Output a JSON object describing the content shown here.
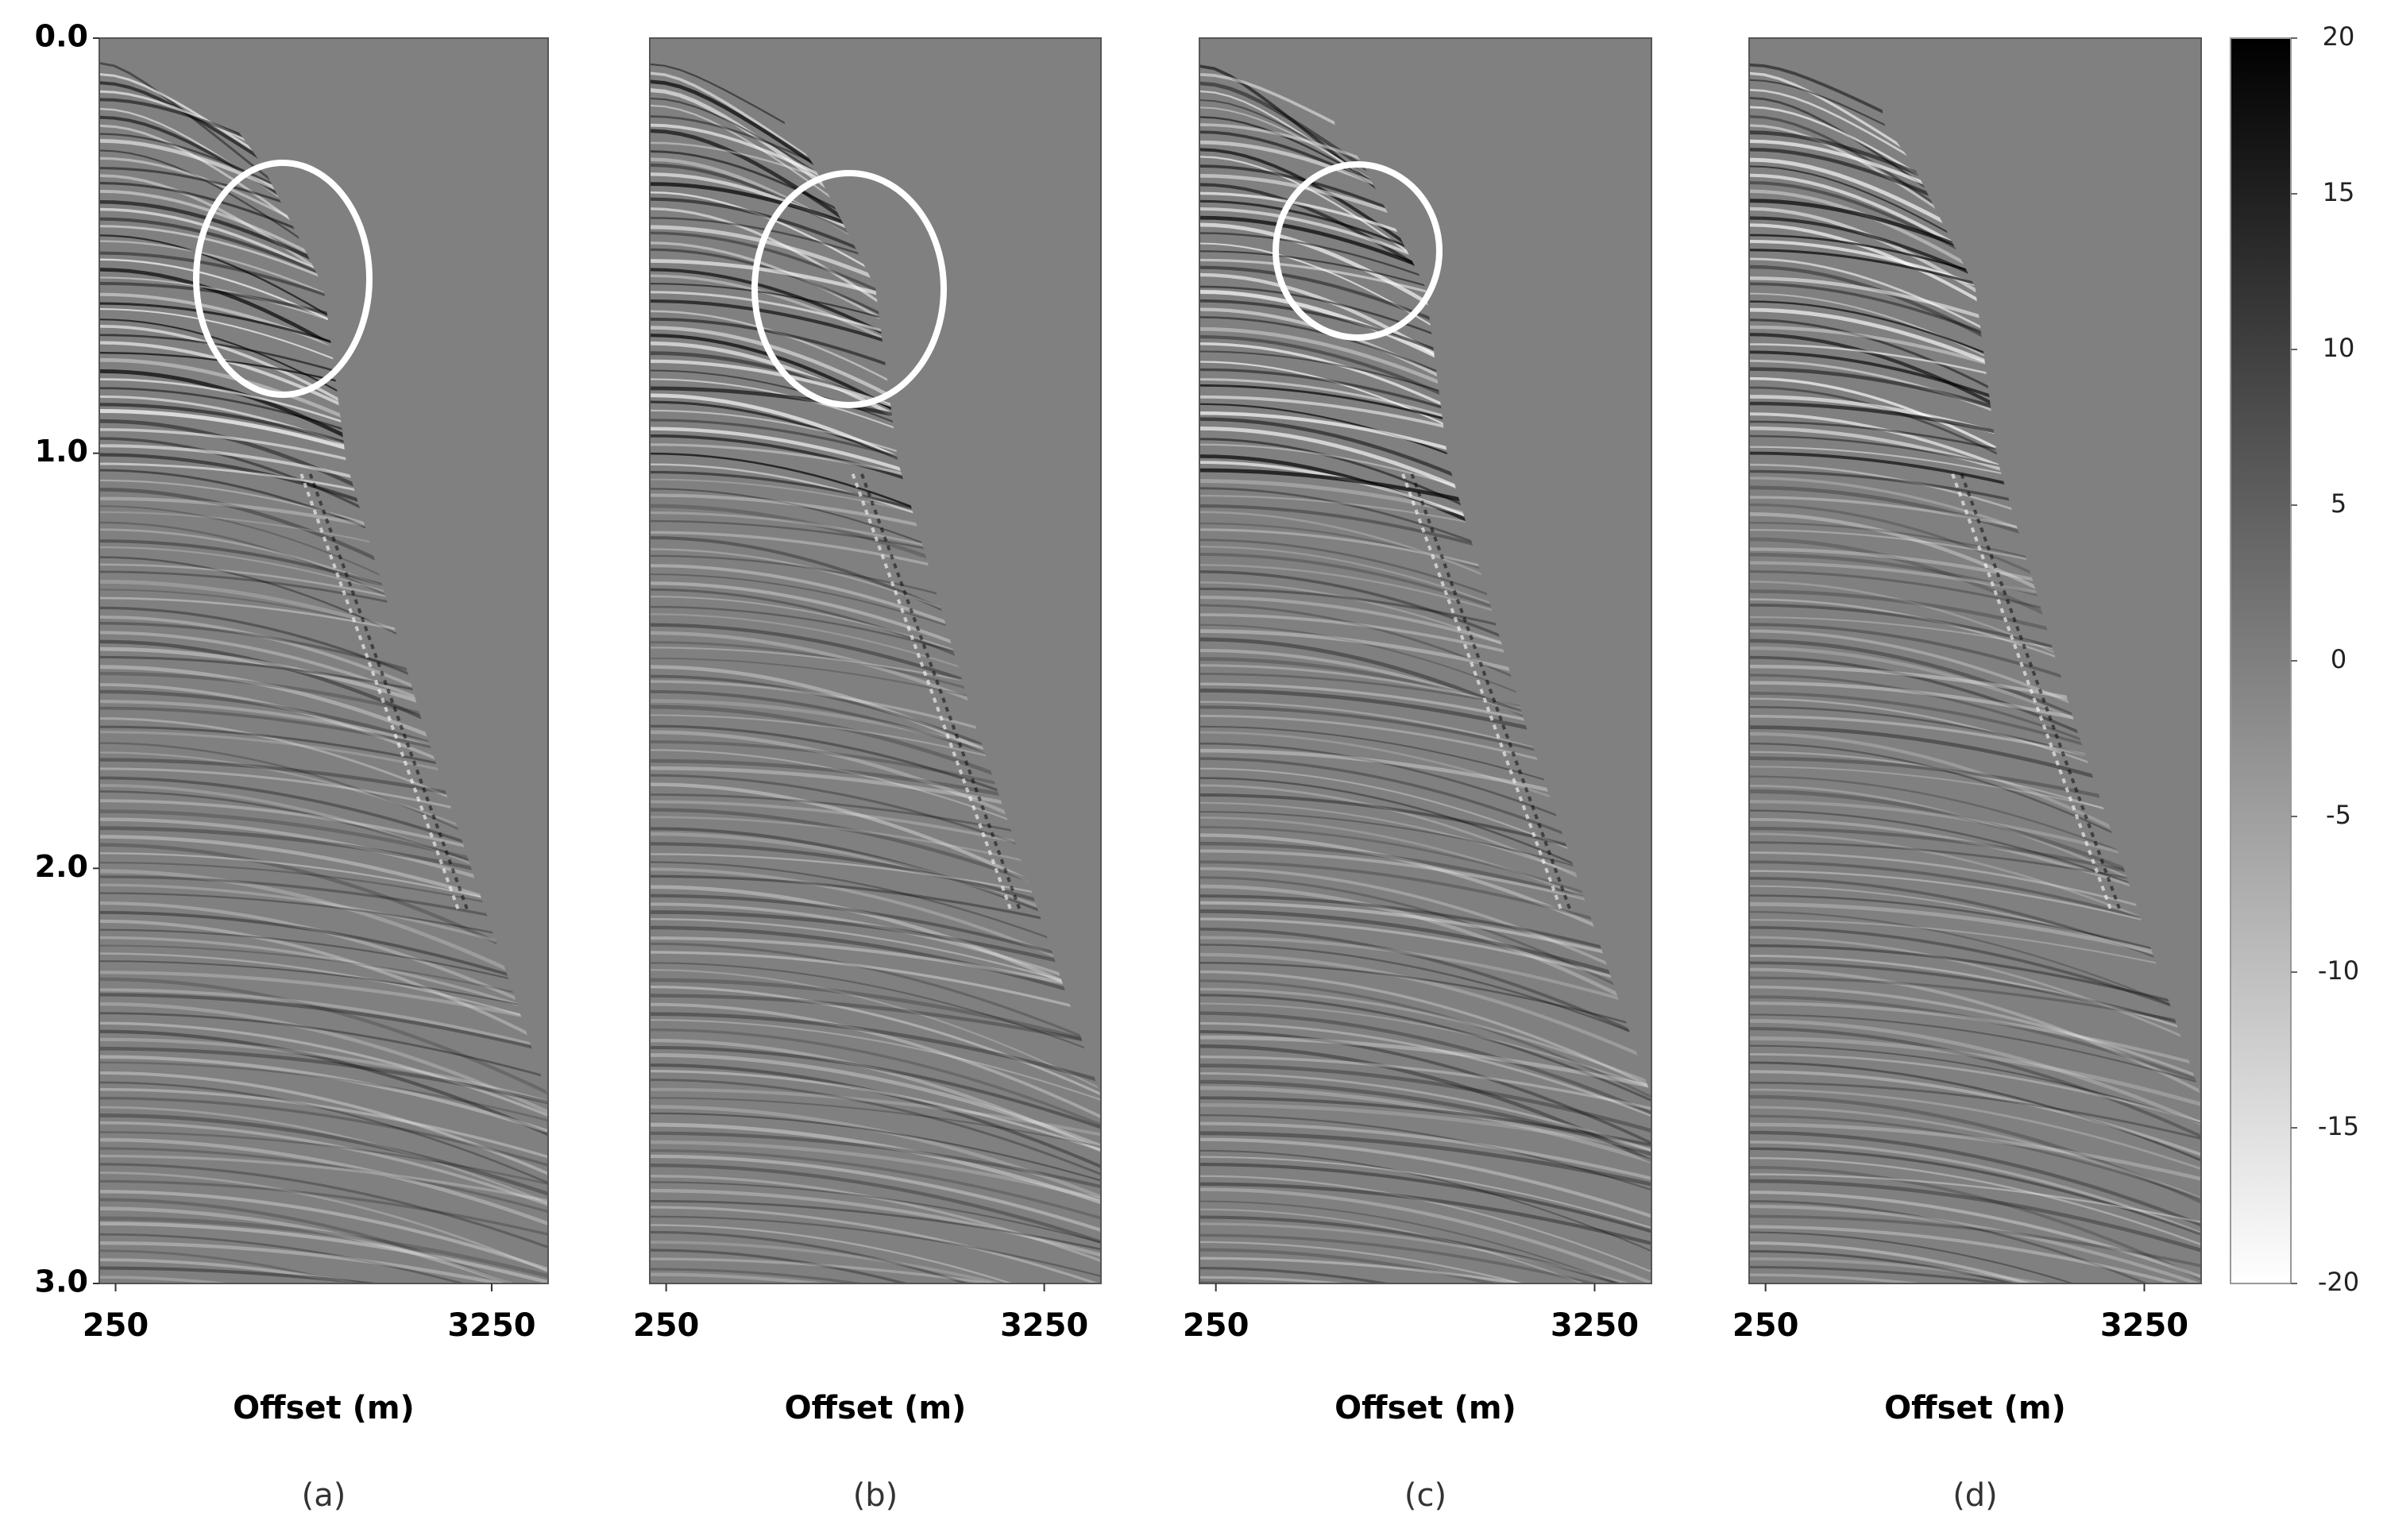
{
  "chart_data": [
    {
      "type": "seismic",
      "xlabel": "Offset (m)",
      "caption": "(a)",
      "xlim": [
        120,
        3700
      ],
      "xticks": [
        250,
        3250
      ],
      "ylim": [
        0,
        3
      ],
      "yticks": [
        {
          "value": 0,
          "label": "0.0"
        },
        {
          "value": 1,
          "label": "1.0"
        },
        {
          "value": 2,
          "label": "2.0"
        },
        {
          "value": 3,
          "label": "3.0"
        }
      ]
    },
    {
      "type": "seismic",
      "xlabel": "Offset (m)",
      "caption": "(b)",
      "xlim": [
        120,
        3700
      ],
      "xticks": [
        250,
        3250
      ],
      "ylim": [
        0,
        3
      ]
    },
    {
      "type": "seismic",
      "xlabel": "Offset (m)",
      "caption": "(c)",
      "xlim": [
        120,
        3700
      ],
      "xticks": [
        250,
        3250
      ],
      "ylim": [
        0,
        3
      ]
    },
    {
      "type": "seismic",
      "xlabel": "Offset (m)",
      "caption": "(d)",
      "xlim": [
        120,
        3700
      ],
      "xticks": [
        250,
        3250
      ],
      "ylim": [
        0,
        3
      ]
    },
    {
      "type": "colorbar",
      "ylim": [
        -20,
        20
      ],
      "yticks": [
        20,
        15,
        10,
        5,
        0,
        -5,
        -10,
        -15,
        -20
      ]
    }
  ]
}
